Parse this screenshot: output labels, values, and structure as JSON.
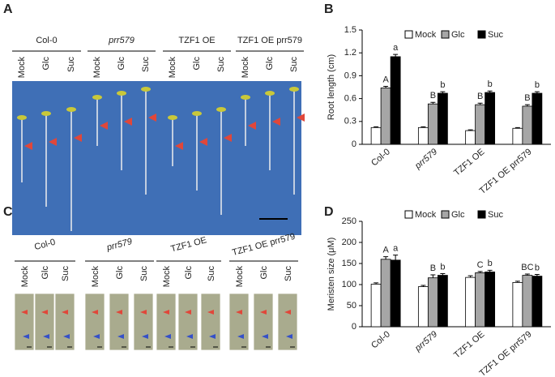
{
  "panel_labels": [
    "A",
    "B",
    "C",
    "D"
  ],
  "photo_a": {
    "groups": [
      {
        "label": "Col-0",
        "treatments": [
          "Mock",
          "Glc",
          "Suc"
        ]
      },
      {
        "label": "prr579",
        "treatments": [
          "Mock",
          "Glc",
          "Suc"
        ]
      },
      {
        "label": "TZF1 OE",
        "treatments": [
          "Mock",
          "Glc",
          "Suc"
        ]
      },
      {
        "label": "TZF1 OE prr579",
        "treatments": [
          "Mock",
          "Glc",
          "Suc"
        ]
      }
    ]
  },
  "photo_c": {
    "groups": [
      {
        "label": "Col-0",
        "treatments": [
          "Mock",
          "Glc",
          "Suc"
        ]
      },
      {
        "label": "prr579",
        "treatments": [
          "Mock",
          "Glc",
          "Suc"
        ]
      },
      {
        "label": "TZF1 OE",
        "treatments": [
          "Mock",
          "Glc",
          "Suc"
        ]
      },
      {
        "label": "TZF1 OE prr579",
        "treatments": [
          "Mock",
          "Glc",
          "Suc"
        ]
      }
    ]
  },
  "chart_data": [
    {
      "type": "bar",
      "y_label": "Root length (cm)",
      "categories": [
        "Col-0",
        "prr579",
        "TZF1 OE",
        "TZF1 OE prr579"
      ],
      "series": [
        {
          "name": "Mock",
          "color": "#ffffff",
          "values": [
            0.22,
            0.22,
            0.18,
            0.21
          ],
          "errors": [
            0.01,
            0.01,
            0.01,
            0.01
          ]
        },
        {
          "name": "Glc",
          "color": "#a6a6a6",
          "values": [
            0.74,
            0.53,
            0.52,
            0.5
          ],
          "errors": [
            0.02,
            0.02,
            0.02,
            0.02
          ],
          "letters": [
            "A",
            "B",
            "B",
            "B"
          ]
        },
        {
          "name": "Suc",
          "color": "#000000",
          "values": [
            1.15,
            0.67,
            0.68,
            0.67
          ],
          "errors": [
            0.03,
            0.02,
            0.02,
            0.02
          ],
          "letters": [
            "a",
            "b",
            "b",
            "b"
          ]
        }
      ],
      "ylim": [
        0,
        1.5
      ],
      "yticks": [
        0,
        0.3,
        0.6,
        0.9,
        1.2,
        1.5
      ]
    },
    {
      "type": "bar",
      "y_label": "Meristen size (μM)",
      "categories": [
        "Col-0",
        "prr579",
        "TZF1 OE",
        "TZF1 OE prr579"
      ],
      "series": [
        {
          "name": "Mock",
          "color": "#ffffff",
          "values": [
            101,
            95,
            117,
            105
          ],
          "errors": [
            3,
            3,
            4,
            3
          ]
        },
        {
          "name": "Glc",
          "color": "#a6a6a6",
          "values": [
            160,
            116,
            128,
            122
          ],
          "errors": [
            6,
            7,
            3,
            3
          ],
          "letters": [
            "A",
            "B",
            "C",
            "BC"
          ]
        },
        {
          "name": "Suc",
          "color": "#000000",
          "values": [
            158,
            122,
            130,
            120
          ],
          "errors": [
            12,
            4,
            4,
            4
          ],
          "letters": [
            "a",
            "b",
            "b",
            "b"
          ]
        }
      ],
      "ylim": [
        0,
        250
      ],
      "yticks": [
        0,
        50,
        100,
        150,
        200,
        250
      ]
    }
  ]
}
